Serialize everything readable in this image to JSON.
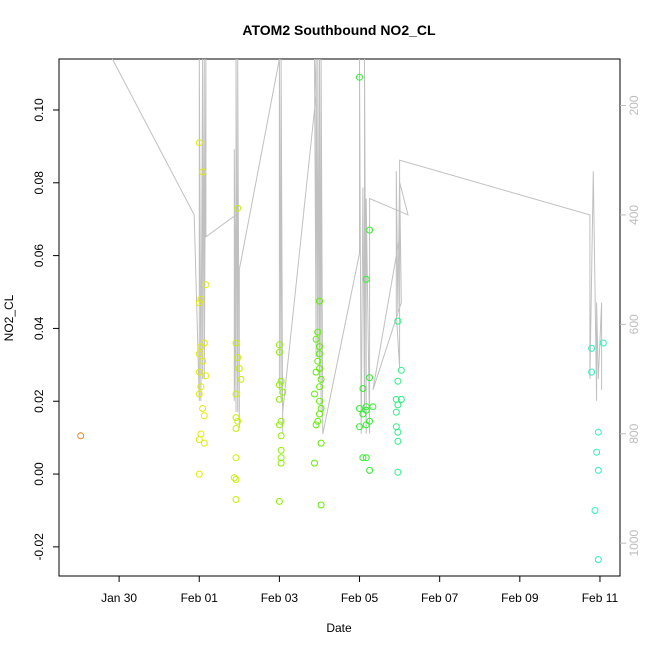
{
  "chart_data": {
    "type": "scatter",
    "title": "ATOM2 Southbound NO2_CL",
    "xlabel": "Date",
    "ylabel": "NO2_CL",
    "xlim": [
      "2024-01-28T12:00",
      "2024-02-11T12:00"
    ],
    "ylim": [
      -0.028,
      0.114
    ],
    "x_ticks": [
      {
        "value": "2024-01-30",
        "label": "Jan 30"
      },
      {
        "value": "2024-02-01",
        "label": "Feb 01"
      },
      {
        "value": "2024-02-03",
        "label": "Feb 03"
      },
      {
        "value": "2024-02-05",
        "label": "Feb 05"
      },
      {
        "value": "2024-02-07",
        "label": "Feb 07"
      },
      {
        "value": "2024-02-09",
        "label": "Feb 09"
      },
      {
        "value": "2024-02-11",
        "label": "Feb 11"
      }
    ],
    "y_ticks": [
      -0.02,
      0.0,
      0.02,
      0.04,
      0.06,
      0.08,
      0.1
    ],
    "y_tick_labels": [
      "-0.02",
      "0.00",
      "0.02",
      "0.04",
      "0.06",
      "0.08",
      "0.10"
    ],
    "right_axis": {
      "ticks": [
        200,
        400,
        600,
        800,
        1000
      ],
      "tick_labels": [
        "200",
        "400",
        "600",
        "800",
        "1000"
      ],
      "reversed": true,
      "lim": [
        115,
        1060
      ],
      "color": "#bdbdbd"
    },
    "grid": false,
    "series": [
      {
        "color": "#e8821f",
        "points": [
          [
            "2024-01-29T01:00",
            0.0105
          ]
        ]
      },
      {
        "color": "#e1ec00",
        "points": [
          [
            "2024-02-01T00:00",
            0.091
          ],
          [
            "2024-02-01T02:00",
            0.083
          ],
          [
            "2024-02-01T01:00",
            0.048
          ],
          [
            "2024-02-01T04:00",
            0.052
          ],
          [
            "2024-02-01T00:00",
            0.047
          ],
          [
            "2024-02-01T03:00",
            0.036
          ],
          [
            "2024-02-01T01:00",
            0.035
          ],
          [
            "2024-02-01T00:00",
            0.033
          ],
          [
            "2024-02-01T02:00",
            0.031
          ],
          [
            "2024-02-01T00:00",
            0.028
          ],
          [
            "2024-02-01T04:00",
            0.027
          ],
          [
            "2024-02-01T01:00",
            0.024
          ],
          [
            "2024-02-01T00:00",
            0.022
          ],
          [
            "2024-02-01T02:00",
            0.018
          ],
          [
            "2024-02-01T03:00",
            0.016
          ],
          [
            "2024-02-01T01:00",
            0.011
          ],
          [
            "2024-02-01T00:00",
            0.0095
          ],
          [
            "2024-02-01T03:00",
            0.0085
          ],
          [
            "2024-02-01T00:00",
            0.0
          ]
        ]
      },
      {
        "color": "#c8f000",
        "points": [
          [
            "2024-02-01T23:00",
            0.073
          ],
          [
            "2024-02-01T22:00",
            0.036
          ],
          [
            "2024-02-01T23:00",
            0.032
          ],
          [
            "2024-02-02T00:00",
            0.029
          ],
          [
            "2024-02-02T01:00",
            0.026
          ],
          [
            "2024-02-01T22:00",
            0.022
          ],
          [
            "2024-02-01T22:00",
            0.0155
          ],
          [
            "2024-02-01T23:00",
            0.0145
          ],
          [
            "2024-02-01T22:00",
            0.0125
          ],
          [
            "2024-02-01T22:00",
            0.0045
          ],
          [
            "2024-02-01T21:00",
            -0.001
          ],
          [
            "2024-02-01T22:00",
            -0.0015
          ],
          [
            "2024-02-01T22:00",
            -0.007
          ]
        ]
      },
      {
        "color": "#8cf200",
        "points": [
          [
            "2024-02-03T00:00",
            0.0355
          ],
          [
            "2024-02-03T00:00",
            0.0335
          ],
          [
            "2024-02-03T01:00",
            0.0255
          ],
          [
            "2024-02-03T00:00",
            0.0245
          ],
          [
            "2024-02-03T02:00",
            0.0225
          ],
          [
            "2024-02-03T00:00",
            0.0205
          ],
          [
            "2024-02-03T01:00",
            0.0145
          ],
          [
            "2024-02-03T00:00",
            0.0135
          ],
          [
            "2024-02-03T01:00",
            0.0105
          ],
          [
            "2024-02-03T01:00",
            0.0065
          ],
          [
            "2024-02-03T01:00",
            0.0045
          ],
          [
            "2024-02-03T01:00",
            0.003
          ],
          [
            "2024-02-03T00:00",
            -0.0075
          ]
        ]
      },
      {
        "color": "#5ef000",
        "points": [
          [
            "2024-02-04T00:00",
            0.0475
          ],
          [
            "2024-02-03T23:00",
            0.039
          ],
          [
            "2024-02-03T22:00",
            0.037
          ],
          [
            "2024-02-04T00:00",
            0.035
          ],
          [
            "2024-02-04T00:00",
            0.033
          ],
          [
            "2024-02-03T23:00",
            0.031
          ],
          [
            "2024-02-04T00:00",
            0.029
          ],
          [
            "2024-02-03T22:00",
            0.028
          ],
          [
            "2024-02-04T01:00",
            0.026
          ],
          [
            "2024-02-04T00:00",
            0.024
          ],
          [
            "2024-02-03T21:00",
            0.022
          ],
          [
            "2024-02-04T00:00",
            0.02
          ],
          [
            "2024-02-04T01:00",
            0.018
          ],
          [
            "2024-02-04T00:00",
            0.0165
          ],
          [
            "2024-02-03T23:00",
            0.0145
          ],
          [
            "2024-02-03T22:00",
            0.0135
          ],
          [
            "2024-02-04T01:00",
            0.0085
          ],
          [
            "2024-02-03T21:00",
            0.003
          ],
          [
            "2024-02-04T01:00",
            -0.0085
          ]
        ]
      },
      {
        "color": "#2cf22a",
        "points": [
          [
            "2024-02-05T00:00",
            0.109
          ],
          [
            "2024-02-05T06:00",
            0.067
          ],
          [
            "2024-02-05T04:00",
            0.0535
          ],
          [
            "2024-02-05T06:00",
            0.0265
          ],
          [
            "2024-02-05T02:00",
            0.0235
          ],
          [
            "2024-02-05T04:00",
            0.0185
          ],
          [
            "2024-02-05T08:00",
            0.0185
          ],
          [
            "2024-02-05T00:00",
            0.018
          ],
          [
            "2024-02-05T02:00",
            0.0165
          ],
          [
            "2024-02-05T04:00",
            0.0175
          ],
          [
            "2024-02-05T06:00",
            0.0145
          ],
          [
            "2024-02-05T04:00",
            0.0135
          ],
          [
            "2024-02-05T00:00",
            0.013
          ],
          [
            "2024-02-05T02:00",
            0.0045
          ],
          [
            "2024-02-05T04:00",
            0.0045
          ],
          [
            "2024-02-05T06:00",
            0.001
          ]
        ]
      },
      {
        "color": "#2af080",
        "points": [
          [
            "2024-02-05T23:00",
            0.042
          ],
          [
            "2024-02-06T01:00",
            0.0285
          ],
          [
            "2024-02-05T23:00",
            0.0255
          ],
          [
            "2024-02-06T01:00",
            0.0205
          ],
          [
            "2024-02-05T22:00",
            0.0205
          ],
          [
            "2024-02-05T23:00",
            0.019
          ],
          [
            "2024-02-05T22:00",
            0.017
          ],
          [
            "2024-02-05T22:00",
            0.013
          ],
          [
            "2024-02-05T23:00",
            0.0115
          ],
          [
            "2024-02-05T23:00",
            0.009
          ],
          [
            "2024-02-05T23:00",
            0.0005
          ]
        ]
      },
      {
        "color": "#2af2c0",
        "points": [
          [
            "2024-02-10T19:00",
            0.0345
          ],
          [
            "2024-02-11T02:00",
            0.036
          ],
          [
            "2024-02-10T19:00",
            0.028
          ],
          [
            "2024-02-10T23:00",
            0.0115
          ],
          [
            "2024-02-10T22:00",
            0.006
          ],
          [
            "2024-02-10T23:00",
            0.001
          ],
          [
            "2024-02-10T21:00",
            -0.01
          ],
          [
            "2024-02-10T23:00",
            -0.0235
          ]
        ]
      }
    ],
    "secondary_line": {
      "color": "#c0c0c0",
      "axis": "right",
      "points": [
        [
          "2024-01-29T20:00",
          115
        ],
        [
          "2024-01-31T21:00",
          400
        ],
        [
          "2024-02-01T00:00",
          740
        ],
        [
          "2024-02-01T00:00",
          115
        ],
        [
          "2024-02-01T01:00",
          740
        ],
        [
          "2024-02-01T02:00",
          115
        ],
        [
          "2024-02-01T02:00",
          700
        ],
        [
          "2024-02-01T03:00",
          115
        ],
        [
          "2024-02-01T03:00",
          700
        ],
        [
          "2024-02-01T04:00",
          115
        ],
        [
          "2024-02-01T04:00",
          440
        ],
        [
          "2024-02-01T22:00",
          400
        ],
        [
          "2024-02-01T21:00",
          740
        ],
        [
          "2024-02-01T21:00",
          280
        ],
        [
          "2024-02-01T22:00",
          760
        ],
        [
          "2024-02-01T22:00",
          115
        ],
        [
          "2024-02-01T23:00",
          760
        ],
        [
          "2024-02-01T23:00",
          115
        ],
        [
          "2024-02-02T00:00",
          790
        ],
        [
          "2024-02-02T00:00",
          500
        ],
        [
          "2024-02-03T00:00",
          115
        ],
        [
          "2024-02-03T00:00",
          720
        ],
        [
          "2024-02-03T00:00",
          115
        ],
        [
          "2024-02-03T01:00",
          740
        ],
        [
          "2024-02-03T01:00",
          115
        ],
        [
          "2024-02-03T02:00",
          800
        ],
        [
          "2024-02-03T02:00",
          760
        ],
        [
          "2024-02-03T22:00",
          180
        ],
        [
          "2024-02-03T21:00",
          115
        ],
        [
          "2024-02-03T22:00",
          660
        ],
        [
          "2024-02-03T22:00",
          115
        ],
        [
          "2024-02-03T23:00",
          660
        ],
        [
          "2024-02-03T23:00",
          115
        ],
        [
          "2024-02-04T00:00",
          700
        ],
        [
          "2024-02-04T00:00",
          115
        ],
        [
          "2024-02-04T01:00",
          760
        ],
        [
          "2024-02-04T01:00",
          115
        ],
        [
          "2024-02-04T02:00",
          800
        ],
        [
          "2024-02-05T00:00",
          470
        ],
        [
          "2024-02-05T00:00",
          115
        ],
        [
          "2024-02-05T01:00",
          800
        ],
        [
          "2024-02-05T02:00",
          350
        ],
        [
          "2024-02-05T03:00",
          760
        ],
        [
          "2024-02-05T03:00",
          115
        ],
        [
          "2024-02-05T04:00",
          800
        ],
        [
          "2024-02-05T04:00",
          370
        ],
        [
          "2024-02-05T06:00",
          800
        ],
        [
          "2024-02-05T06:00",
          370
        ],
        [
          "2024-02-06T05:00",
          400
        ],
        [
          "2024-02-06T00:00",
          340
        ],
        [
          "2024-02-06T00:00",
          680
        ],
        [
          "2024-02-05T22:00",
          580
        ],
        [
          "2024-02-05T22:00",
          320
        ],
        [
          "2024-02-05T23:00",
          580
        ],
        [
          "2024-02-06T00:00",
          330
        ],
        [
          "2024-02-06T01:00",
          560
        ],
        [
          "2024-02-05T08:00",
          720
        ],
        [
          "2024-02-06T00:00",
          440
        ],
        [
          "2024-02-06T00:00",
          300
        ],
        [
          "2024-02-10T18:00",
          400
        ],
        [
          "2024-02-10T18:00",
          700
        ],
        [
          "2024-02-10T20:00",
          320
        ],
        [
          "2024-02-10T22:00",
          740
        ],
        [
          "2024-02-10T22:00",
          560
        ],
        [
          "2024-02-10T23:00",
          700
        ],
        [
          "2024-02-11T01:00",
          560
        ],
        [
          "2024-02-11T01:00",
          720
        ]
      ]
    }
  }
}
